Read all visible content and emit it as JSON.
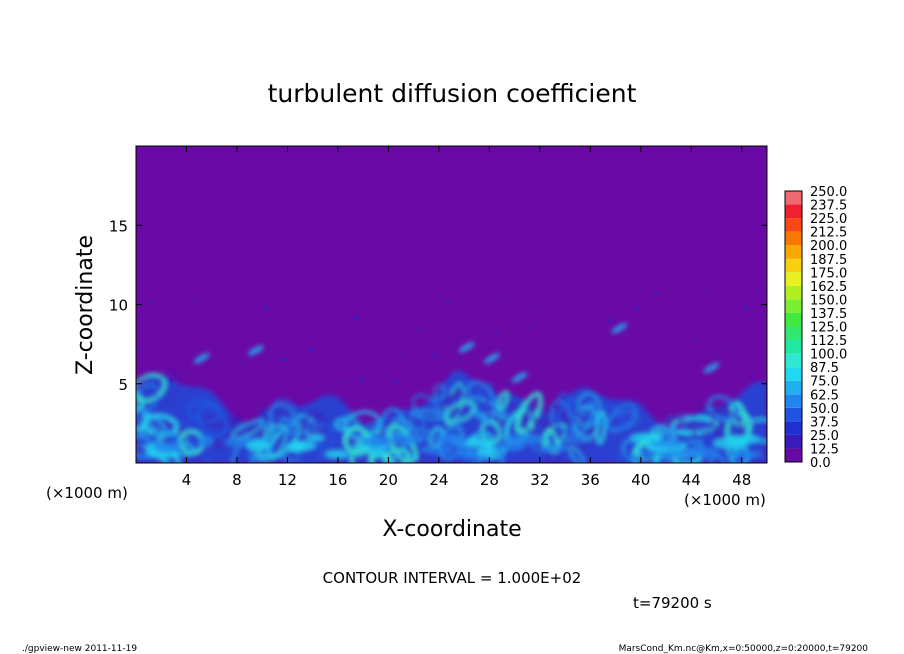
{
  "chart_data": {
    "type": "heatmap",
    "title": "turbulent diffusion coefficient",
    "xlabel": "X-coordinate",
    "ylabel": "Z-coordinate",
    "x_unit_left": "(×1000 m)",
    "x_unit_right": "(×1000 m)",
    "xlim": [
      0,
      50
    ],
    "ylim": [
      0,
      20
    ],
    "x_ticks": [
      4,
      8,
      12,
      16,
      20,
      24,
      28,
      32,
      36,
      40,
      44,
      48
    ],
    "y_ticks": [
      5,
      10,
      15
    ],
    "colorbar": {
      "levels": [
        "0.0",
        "12.5",
        "25.0",
        "37.5",
        "50.0",
        "62.5",
        "75.0",
        "87.5",
        "100.0",
        "112.5",
        "125.0",
        "137.5",
        "150.0",
        "162.5",
        "175.0",
        "187.5",
        "200.0",
        "212.5",
        "225.0",
        "237.5",
        "250.0"
      ],
      "colors": [
        "#6a0aa6",
        "#3a1ab8",
        "#2030d0",
        "#1f55e0",
        "#2085ec",
        "#20b0f0",
        "#20d8f0",
        "#30e8d0",
        "#20e8a0",
        "#30e870",
        "#40e840",
        "#7aee30",
        "#b0f020",
        "#e8f020",
        "#f8d010",
        "#f8a800",
        "#f87800",
        "#f84818",
        "#f02030",
        "#f06870"
      ]
    },
    "background_value_color": "#6a0aa6",
    "contour_interval_text": "CONTOUR INTERVAL = 1.000E+02",
    "time_text": "t=79200 s"
  },
  "footer": {
    "left": "./gpview-new   2011-11-19",
    "right": "MarsCond_Km.nc@Km,x=0:50000,z=0:20000,t=79200"
  }
}
